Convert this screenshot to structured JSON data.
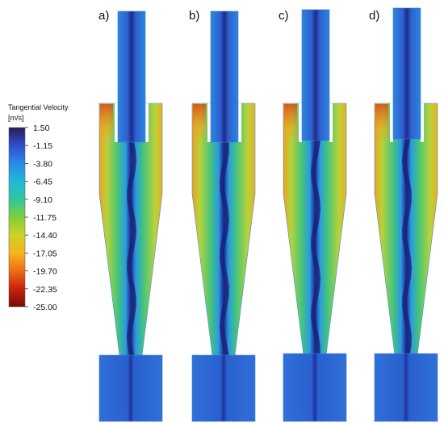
{
  "legend": {
    "title": "Tangential Velocity",
    "unit": "[m/s]",
    "ticks": [
      "1.50",
      "-1.15",
      "-3.80",
      "-6.45",
      "-9.10",
      "-11.75",
      "-14.40",
      "-17.05",
      "-19.70",
      "-22.35",
      "-25.00"
    ],
    "colormap": [
      "#2b1a5a",
      "#2f4fcc",
      "#2a8ae8",
      "#20b8d8",
      "#2ec79a",
      "#7fcf3a",
      "#c9d424",
      "#f5b51d",
      "#ef6b16",
      "#c7220d",
      "#7a0a05"
    ]
  },
  "panels": [
    {
      "label": "a)"
    },
    {
      "label": "b)"
    },
    {
      "label": "c)"
    },
    {
      "label": "d)"
    }
  ],
  "colors": {
    "vortex_core": "#1b1f7a",
    "body_blue": "#2f72d6",
    "body_cyan": "#27b9c7",
    "body_green": "#4cc46a",
    "body_yellow": "#a8d23a",
    "wall_hot": "#e0651e"
  }
}
